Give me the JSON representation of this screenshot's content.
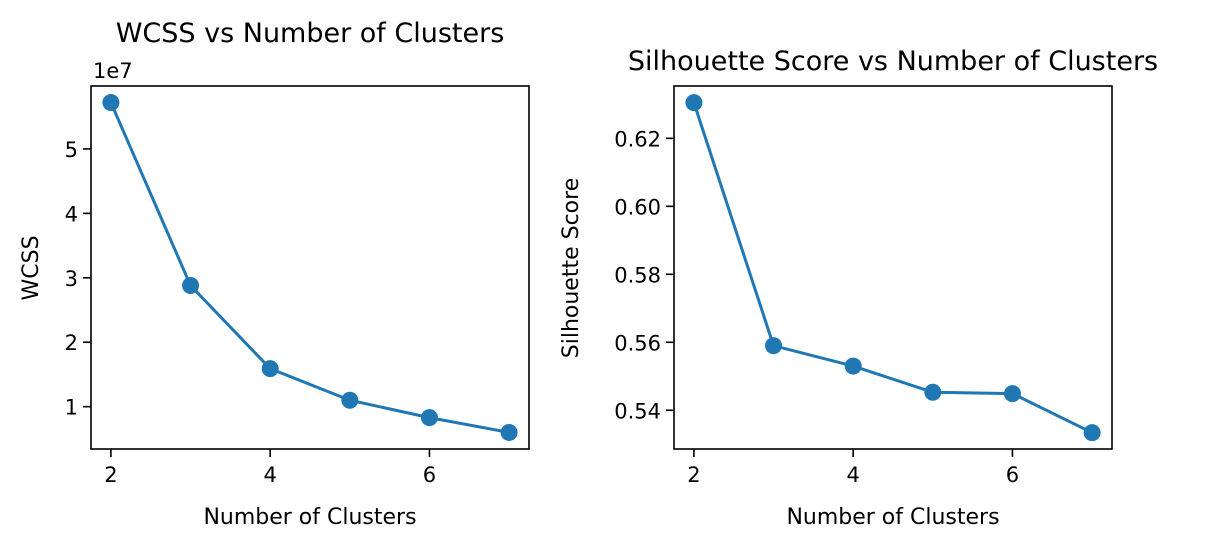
{
  "figure": {
    "charts": [
      {
        "type": "line",
        "title": "WCSS vs Number of Clusters",
        "xlabel": "Number of Clusters",
        "ylabel": "WCSS",
        "offset_label": "1e7",
        "x_ticks": [
          2,
          4,
          6
        ],
        "x_tick_labels": [
          "2",
          "4",
          "6"
        ],
        "y_ticks": [
          1,
          2,
          3,
          4,
          5
        ],
        "y_tick_labels": [
          "1",
          "2",
          "3",
          "4",
          "5"
        ]
      },
      {
        "type": "line",
        "title": "Silhouette Score vs Number of Clusters",
        "xlabel": "Number of Clusters",
        "ylabel": "Silhouette Score",
        "x_ticks": [
          2,
          4,
          6
        ],
        "x_tick_labels": [
          "2",
          "4",
          "6"
        ],
        "y_ticks": [
          0.54,
          0.56,
          0.58,
          0.6,
          0.62
        ],
        "y_tick_labels": [
          "0.54",
          "0.56",
          "0.58",
          "0.60",
          "0.62"
        ]
      }
    ]
  },
  "chart_data": [
    {
      "type": "line",
      "title": "WCSS vs Number of Clusters",
      "xlabel": "Number of Clusters",
      "ylabel": "WCSS",
      "x": [
        2,
        3,
        4,
        5,
        6,
        7
      ],
      "series": [
        {
          "values": [
            57200000,
            28800000,
            15900000,
            11000000,
            8300000,
            6000000
          ]
        }
      ],
      "xlim": [
        1.75,
        7.25
      ],
      "ylim": [
        3430000,
        59770000
      ],
      "grid": false,
      "color": "#1f77b4"
    },
    {
      "type": "line",
      "title": "Silhouette Score vs Number of Clusters",
      "xlabel": "Number of Clusters",
      "ylabel": "Silhouette Score",
      "x": [
        2,
        3,
        4,
        5,
        6,
        7
      ],
      "series": [
        {
          "values": [
            0.6305,
            0.559,
            0.553,
            0.5453,
            0.5449,
            0.5334
          ]
        }
      ],
      "xlim": [
        1.75,
        7.25
      ],
      "ylim": [
        0.5286,
        0.6354
      ],
      "grid": false,
      "color": "#1f77b4"
    }
  ]
}
